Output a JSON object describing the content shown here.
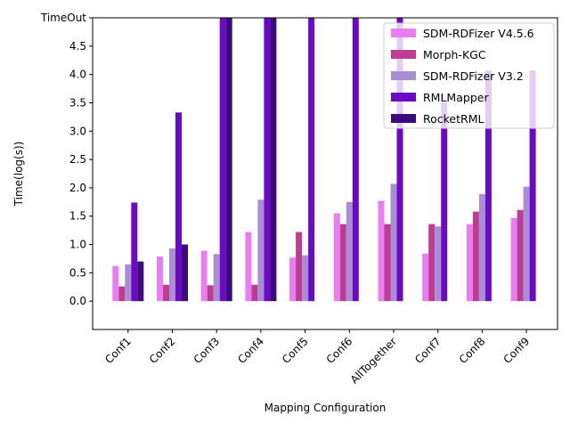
{
  "chart_data": {
    "type": "bar",
    "title": "",
    "xlabel": "Mapping Configuration",
    "ylabel": "Time(log(s))",
    "categories": [
      "Conf1",
      "Conf2",
      "Conf3",
      "Conf4",
      "Conf5",
      "Conf6",
      "AllTogether",
      "Conf7",
      "Conf8",
      "Conf9"
    ],
    "yticks": [
      {
        "value": 0.0,
        "label": "0.0"
      },
      {
        "value": 0.5,
        "label": "0.5"
      },
      {
        "value": 1.0,
        "label": "1.0"
      },
      {
        "value": 1.5,
        "label": "1.5"
      },
      {
        "value": 2.0,
        "label": "2.0"
      },
      {
        "value": 2.5,
        "label": "2.5"
      },
      {
        "value": 3.0,
        "label": "3.0"
      },
      {
        "value": 3.5,
        "label": "3.5"
      },
      {
        "value": 4.0,
        "label": "4.0"
      },
      {
        "value": 4.5,
        "label": "4.5"
      },
      {
        "value": 5.0,
        "label": "TimeOut"
      }
    ],
    "ylim": [
      -0.5,
      5.0
    ],
    "timeout_value": 5.0,
    "series": [
      {
        "name": "SDM-RDFizer V4.5.6",
        "color": "#e87ef0",
        "values": [
          0.62,
          0.79,
          0.89,
          1.22,
          0.77,
          1.55,
          1.77,
          0.84,
          1.36,
          1.47
        ]
      },
      {
        "name": "Morph-KGC",
        "color": "#bd3c94",
        "values": [
          0.26,
          0.29,
          0.28,
          0.29,
          1.22,
          1.36,
          1.36,
          1.36,
          1.58,
          1.61
        ]
      },
      {
        "name": "SDM-RDFizer V3.2",
        "color": "#a98fd1",
        "values": [
          0.65,
          0.93,
          0.83,
          1.79,
          0.81,
          1.75,
          2.07,
          1.32,
          1.89,
          2.02
        ]
      },
      {
        "name": "RMLMapper",
        "color": "#6a0ac4",
        "values": [
          1.74,
          3.33,
          5.0,
          5.0,
          5.0,
          5.0,
          5.0,
          3.5,
          4.07,
          4.07
        ]
      },
      {
        "name": "RocketRML",
        "color": "#3b0a7c",
        "values": [
          0.7,
          1.0,
          5.0,
          5.0,
          null,
          null,
          null,
          null,
          null,
          null
        ]
      }
    ],
    "legend_position": "top-right",
    "grid": false
  }
}
